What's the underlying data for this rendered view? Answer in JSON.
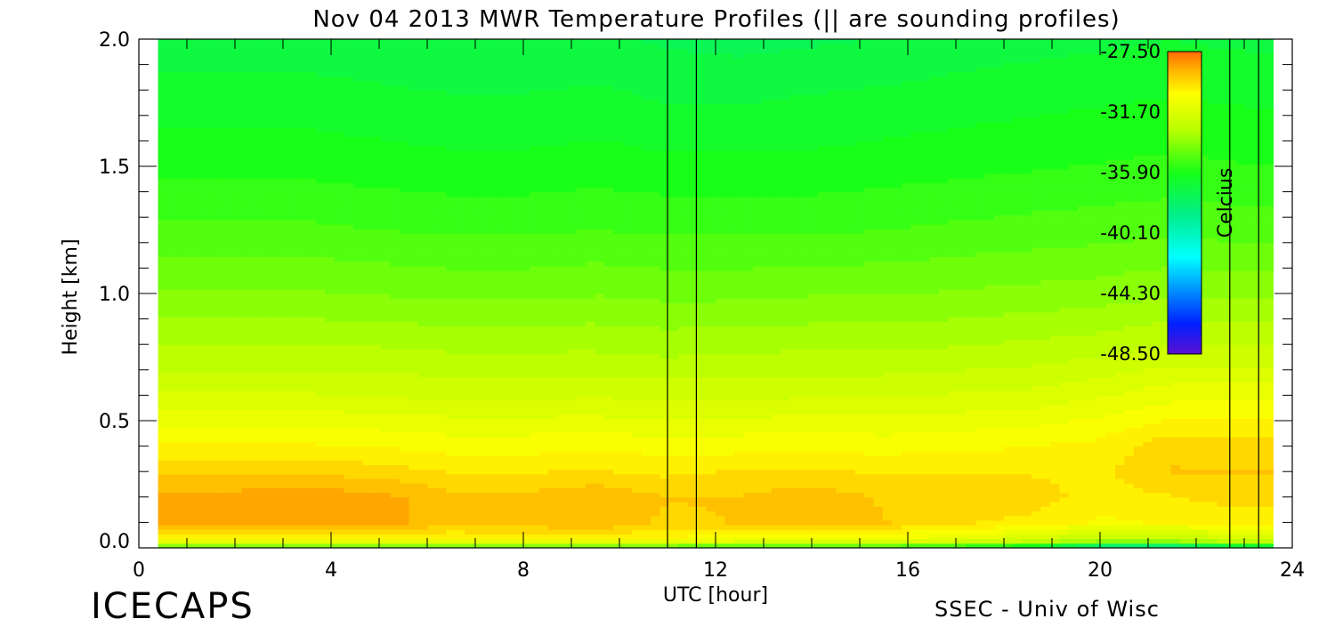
{
  "chart_data": {
    "type": "heatmap",
    "title": "Nov 04 2013 MWR Temperature Profiles (|| are sounding profiles)",
    "xlabel": "UTC [hour]",
    "ylabel": "Height [km]",
    "xlim": [
      0,
      24
    ],
    "ylim": [
      0,
      2.0
    ],
    "x_ticks": [
      "0",
      "4",
      "8",
      "12",
      "16",
      "20",
      "24"
    ],
    "y_ticks": [
      "0.0",
      "0.5",
      "1.0",
      "1.5",
      "2.0"
    ],
    "data_time_range": [
      0.4,
      23.6
    ],
    "sounding_times": [
      11.0,
      11.6,
      22.7,
      23.3
    ],
    "colorbar": {
      "label": "Celcius",
      "range": [
        -48.5,
        -27.5
      ],
      "ticks": [
        "-27.50",
        "-31.70",
        "-35.90",
        "-40.10",
        "-44.30",
        "-48.50"
      ],
      "placement": "inside upper-right"
    },
    "temperature_grid": {
      "times": [
        0.5,
        2,
        3.5,
        5,
        6.5,
        8,
        9.5,
        11,
        12.5,
        14,
        15.5,
        17,
        18.5,
        20,
        21.5,
        23
      ],
      "heights": [
        0.0,
        0.03,
        0.1,
        0.2,
        0.3,
        0.4,
        0.5,
        0.6,
        0.75,
        1.0,
        1.25,
        1.5,
        1.75,
        2.0
      ],
      "values": [
        [
          -35.5,
          -35.5,
          -35.5,
          -35.5,
          -35.5,
          -35.5,
          -35.5,
          -35.5,
          -36,
          -36,
          -36,
          -36.5,
          -37.5,
          -40,
          -40,
          -38
        ],
        [
          -30.5,
          -30.5,
          -30.5,
          -30.5,
          -30.5,
          -30.5,
          -30.5,
          -30.5,
          -31,
          -31,
          -31,
          -31.5,
          -32,
          -33,
          -33,
          -32
        ],
        [
          -28.5,
          -28.6,
          -28.4,
          -28.5,
          -29.2,
          -29,
          -28.8,
          -29.5,
          -29.3,
          -29,
          -29.3,
          -29.8,
          -30,
          -30.5,
          -30.3,
          -30.2
        ],
        [
          -28.6,
          -28.6,
          -28.5,
          -28.6,
          -29.2,
          -29.2,
          -28.9,
          -29.3,
          -29.3,
          -29,
          -29.4,
          -29.6,
          -29.6,
          -30.1,
          -29.9,
          -29.6
        ],
        [
          -29.4,
          -29.4,
          -29.4,
          -29.6,
          -29.9,
          -29.9,
          -29.8,
          -30,
          -29.8,
          -29.8,
          -29.9,
          -29.9,
          -29.9,
          -30,
          -29.3,
          -29.3
        ],
        [
          -30.3,
          -30.3,
          -30.3,
          -30.4,
          -30.6,
          -30.6,
          -30.5,
          -30.6,
          -30.6,
          -30.5,
          -30.6,
          -30.5,
          -30.4,
          -30.2,
          -29.5,
          -29.6
        ],
        [
          -31.1,
          -31.1,
          -31.1,
          -31.2,
          -31.3,
          -31.3,
          -31.3,
          -31.4,
          -31.3,
          -31.3,
          -31.3,
          -31.2,
          -31.1,
          -30.8,
          -30.3,
          -30.3
        ],
        [
          -31.9,
          -31.9,
          -31.9,
          -32,
          -32.1,
          -32.1,
          -32,
          -32.1,
          -32.1,
          -32,
          -32,
          -31.9,
          -31.8,
          -31.5,
          -31.1,
          -31.1
        ],
        [
          -32.8,
          -32.8,
          -32.8,
          -32.8,
          -32.9,
          -32.9,
          -32.9,
          -33,
          -32.9,
          -32.9,
          -32.9,
          -32.8,
          -32.7,
          -32.5,
          -32.2,
          -32.2
        ],
        [
          -34,
          -34,
          -34,
          -34.1,
          -34.2,
          -34.2,
          -34.1,
          -34.2,
          -34.2,
          -34.1,
          -34.1,
          -34,
          -33.9,
          -33.8,
          -33.6,
          -33.7
        ],
        [
          -35,
          -35,
          -35,
          -35.1,
          -35.2,
          -35.2,
          -35.1,
          -35.2,
          -35.2,
          -35.2,
          -35.1,
          -35,
          -34.9,
          -34.8,
          -34.7,
          -34.8
        ],
        [
          -35.8,
          -35.8,
          -35.8,
          -35.9,
          -36,
          -36,
          -35.9,
          -36,
          -36,
          -36,
          -35.9,
          -35.8,
          -35.7,
          -35.6,
          -35.5,
          -35.6
        ],
        [
          -36.4,
          -36.4,
          -36.4,
          -36.5,
          -36.6,
          -36.6,
          -36.5,
          -36.7,
          -36.7,
          -36.6,
          -36.5,
          -36.4,
          -36.3,
          -36.2,
          -36.1,
          -36.2
        ],
        [
          -37,
          -37,
          -37,
          -37.1,
          -37.2,
          -37.2,
          -37.1,
          -37.3,
          -37.4,
          -37.3,
          -37.2,
          -37,
          -36.9,
          -36.8,
          -36.7,
          -36.8
        ]
      ]
    }
  },
  "footer": {
    "brand": "ICECAPS",
    "credit": "SSEC - Univ of Wisc"
  }
}
